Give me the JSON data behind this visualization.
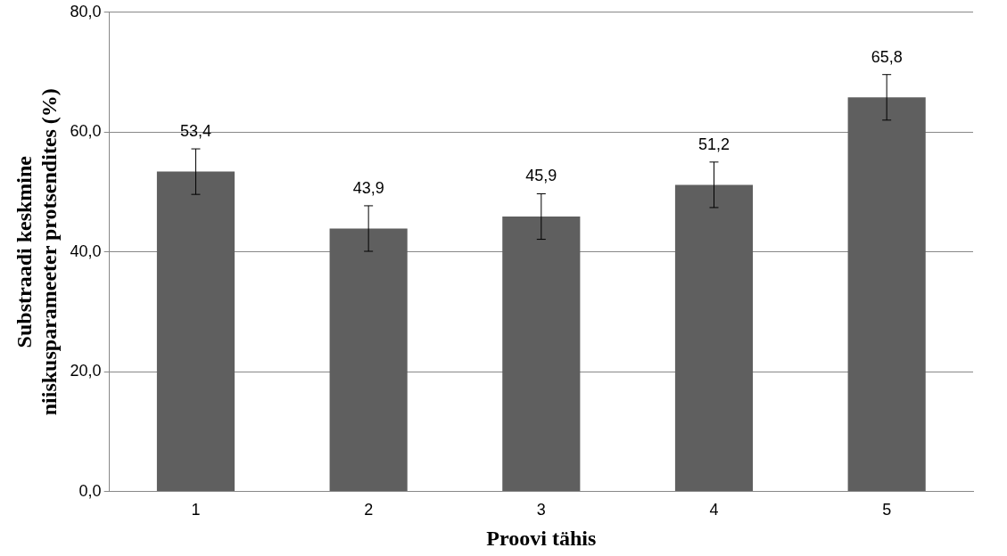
{
  "chart_data": {
    "type": "bar",
    "xlabel": "Proovi tähis",
    "ylabel": "Substraadi keskmine niiskusparameeter protsendites (%)",
    "categories": [
      "1",
      "2",
      "3",
      "4",
      "5"
    ],
    "values": [
      53.4,
      43.9,
      45.9,
      51.2,
      65.8
    ],
    "errors": [
      3.8,
      3.8,
      3.8,
      3.8,
      3.8
    ],
    "value_labels": [
      "53,4",
      "43,9",
      "45,9",
      "51,2",
      "65,8"
    ],
    "color": "#5f5f5f",
    "ylim": [
      0,
      80
    ],
    "yticks": [
      {
        "value": 0,
        "label": "0,0"
      },
      {
        "value": 20,
        "label": "20,0"
      },
      {
        "value": 40,
        "label": "40,0"
      },
      {
        "value": 60,
        "label": "60,0"
      },
      {
        "value": 80,
        "label": "80,0"
      }
    ],
    "grid": "y",
    "legend": false
  }
}
